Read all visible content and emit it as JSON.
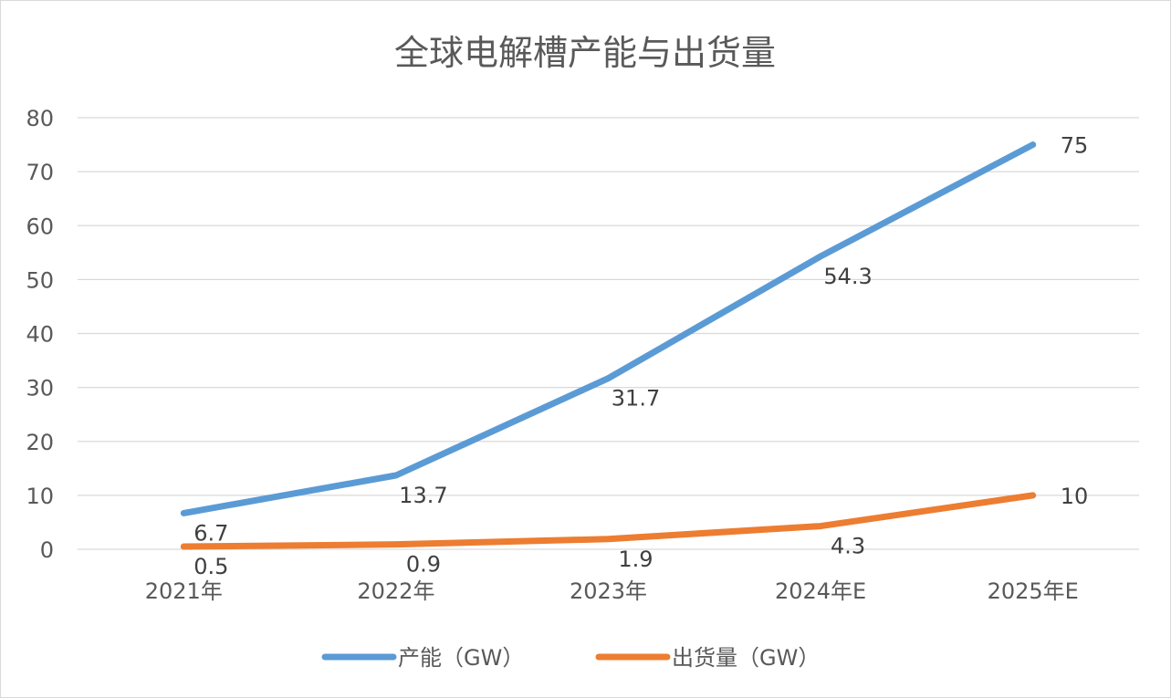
{
  "chart_data": {
    "type": "line",
    "title": "全球电解槽产能与出货量",
    "categories": [
      "2021年",
      "2022年",
      "2023年",
      "2024年E",
      "2025年E"
    ],
    "series": [
      {
        "name": "产能（GW）",
        "color": "#5B9BD5",
        "values": [
          6.7,
          13.7,
          31.7,
          54.3,
          75
        ]
      },
      {
        "name": "出货量（GW）",
        "color": "#ED7D31",
        "values": [
          0.5,
          0.9,
          1.9,
          4.3,
          10
        ]
      }
    ],
    "ylim": [
      0,
      80
    ],
    "yticks": [
      0,
      10,
      20,
      30,
      40,
      50,
      60,
      70,
      80
    ],
    "grid": true,
    "legend": "bottom",
    "data_labels": true
  }
}
